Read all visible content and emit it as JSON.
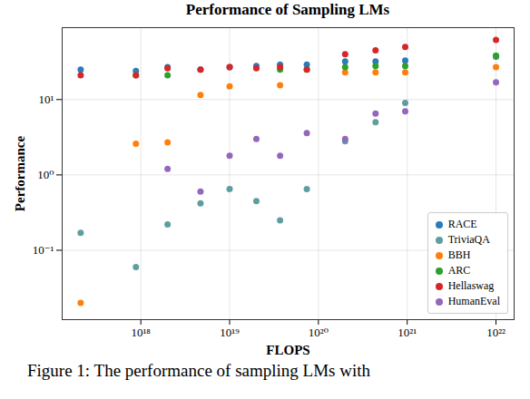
{
  "chart_data": {
    "type": "scatter",
    "title": "Performance of Sampling LMs",
    "caption": "Figure 1: The performance of sampling LMs with",
    "x_label": "FLOPS",
    "y_label": "Performance",
    "log": true,
    "grid": true,
    "legend": "lower right",
    "marker": "circle",
    "x": [
      2.1e+17,
      8.8e+17,
      2e+18,
      4.7e+18,
      1e+19,
      2e+19,
      3.7e+19,
      7.4e+19,
      2e+20,
      4.4e+20,
      9.5e+20,
      1e+22
    ],
    "xlim": [
      1.3e+17,
      1.6e+22
    ],
    "xticks": [
      {
        "value": 1e+18,
        "label": "10¹⁸"
      },
      {
        "value": 1e+19,
        "label": "10¹⁹"
      },
      {
        "value": 1e+20,
        "label": "10²⁰"
      },
      {
        "value": 1e+21,
        "label": "10²¹"
      },
      {
        "value": 1e+22,
        "label": "10²²"
      }
    ],
    "ylim": [
      0.012,
      90
    ],
    "yticks": [
      {
        "value": 0.1,
        "label": "10⁻¹"
      },
      {
        "value": 1,
        "label": "10⁰"
      },
      {
        "value": 10,
        "label": "10¹"
      }
    ],
    "series": [
      {
        "name": "RACE",
        "color": "#2b7bba",
        "values": [
          25,
          24,
          27,
          25,
          27,
          28,
          29,
          29,
          32,
          32,
          33,
          37
        ]
      },
      {
        "name": "TriviaQA",
        "color": "#5f9ea0",
        "values": [
          0.17,
          0.06,
          0.22,
          0.42,
          0.65,
          0.45,
          0.25,
          0.65,
          2.8,
          5,
          9,
          38
        ]
      },
      {
        "name": "BBH",
        "color": "#ff7f0e",
        "values": [
          0.02,
          2.6,
          2.7,
          11.5,
          15,
          null,
          15.5,
          null,
          23,
          23,
          23,
          27
        ]
      },
      {
        "name": "ARC",
        "color": "#2ca02c",
        "values": [
          null,
          21,
          21,
          null,
          null,
          null,
          25,
          25,
          27,
          28,
          28,
          38
        ]
      },
      {
        "name": "Hellaswag",
        "color": "#d62728",
        "values": [
          21,
          21,
          26,
          25,
          27,
          26,
          27,
          25,
          40,
          45,
          50,
          62
        ]
      },
      {
        "name": "HumanEval",
        "color": "#9467bd",
        "values": [
          null,
          null,
          1.2,
          0.6,
          1.8,
          3,
          1.8,
          3.6,
          3,
          6.5,
          7,
          17
        ]
      }
    ]
  }
}
